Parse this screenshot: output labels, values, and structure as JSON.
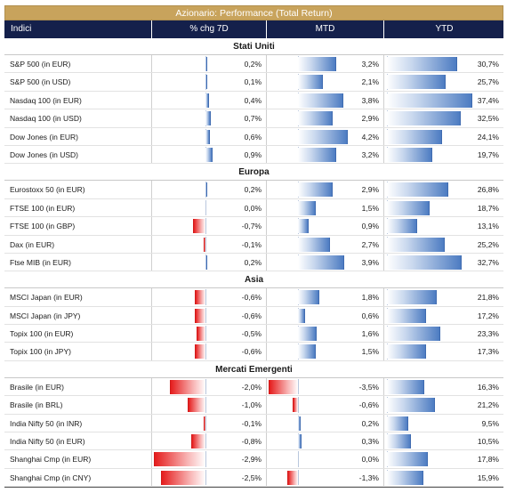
{
  "title": "Azionario: Performance (Total Return)",
  "colors": {
    "title_bg": "#c8a35c",
    "header_bg": "#14204b",
    "positive_bar": "#4d7cc2",
    "negative_bar": "#e51d1d"
  },
  "header": {
    "label": "Indici",
    "col1": "% chg 7D",
    "col2": "MTD",
    "col3": "YTD"
  },
  "chart_data": {
    "type": "table",
    "title": "Azionario: Performance (Total Return)",
    "columns": [
      "Indici",
      "% chg 7D",
      "MTD",
      "YTD"
    ],
    "groups": [
      {
        "name": "Stati Uniti",
        "rows": [
          {
            "label": "S&P 500 (in EUR)",
            "values": [
              0.2,
              3.2,
              30.7
            ],
            "display": [
              "0,2%",
              "3,2%",
              "30,7%"
            ]
          },
          {
            "label": "S&P 500 (in USD)",
            "values": [
              0.1,
              2.1,
              25.7
            ],
            "display": [
              "0,1%",
              "2,1%",
              "25,7%"
            ]
          },
          {
            "label": "Nasdaq 100 (in EUR)",
            "values": [
              0.4,
              3.8,
              37.4
            ],
            "display": [
              "0,4%",
              "3,8%",
              "37,4%"
            ]
          },
          {
            "label": "Nasdaq 100 (in USD)",
            "values": [
              0.7,
              2.9,
              32.5
            ],
            "display": [
              "0,7%",
              "2,9%",
              "32,5%"
            ]
          },
          {
            "label": "Dow Jones (in EUR)",
            "values": [
              0.6,
              4.2,
              24.1
            ],
            "display": [
              "0,6%",
              "4,2%",
              "24,1%"
            ]
          },
          {
            "label": "Dow Jones (in USD)",
            "values": [
              0.9,
              3.2,
              19.7
            ],
            "display": [
              "0,9%",
              "3,2%",
              "19,7%"
            ]
          }
        ]
      },
      {
        "name": "Europa",
        "rows": [
          {
            "label": "Eurostoxx 50 (in EUR)",
            "values": [
              0.2,
              2.9,
              26.8
            ],
            "display": [
              "0,2%",
              "2,9%",
              "26,8%"
            ]
          },
          {
            "label": "FTSE 100 (in EUR)",
            "values": [
              0.0,
              1.5,
              18.7
            ],
            "display": [
              "0,0%",
              "1,5%",
              "18,7%"
            ]
          },
          {
            "label": "FTSE 100 (in GBP)",
            "values": [
              -0.7,
              0.9,
              13.1
            ],
            "display": [
              "-0,7%",
              "0,9%",
              "13,1%"
            ]
          },
          {
            "label": "Dax (in EUR)",
            "values": [
              -0.1,
              2.7,
              25.2
            ],
            "display": [
              "-0,1%",
              "2,7%",
              "25,2%"
            ]
          },
          {
            "label": "Ftse MIB (in EUR)",
            "values": [
              0.2,
              3.9,
              32.7
            ],
            "display": [
              "0,2%",
              "3,9%",
              "32,7%"
            ]
          }
        ]
      },
      {
        "name": "Asia",
        "rows": [
          {
            "label": "MSCI Japan (in EUR)",
            "values": [
              -0.6,
              1.8,
              21.8
            ],
            "display": [
              "-0,6%",
              "1,8%",
              "21,8%"
            ]
          },
          {
            "label": "MSCI Japan (in JPY)",
            "values": [
              -0.6,
              0.6,
              17.2
            ],
            "display": [
              "-0,6%",
              "0,6%",
              "17,2%"
            ]
          },
          {
            "label": "Topix 100 (in EUR)",
            "values": [
              -0.5,
              1.6,
              23.3
            ],
            "display": [
              "-0,5%",
              "1,6%",
              "23,3%"
            ]
          },
          {
            "label": "Topix 100 (in JPY)",
            "values": [
              -0.6,
              1.5,
              17.3
            ],
            "display": [
              "-0,6%",
              "1,5%",
              "17,3%"
            ]
          }
        ]
      },
      {
        "name": "Mercati Emergenti",
        "rows": [
          {
            "label": "Brasile (in EUR)",
            "values": [
              -2.0,
              -3.5,
              16.3
            ],
            "display": [
              "-2,0%",
              "-3,5%",
              "16,3%"
            ]
          },
          {
            "label": "Brasile (in BRL)",
            "values": [
              -1.0,
              -0.6,
              21.2
            ],
            "display": [
              "-1,0%",
              "-0,6%",
              "21,2%"
            ]
          },
          {
            "label": "India Nifty 50 (in INR)",
            "values": [
              -0.1,
              0.2,
              9.5
            ],
            "display": [
              "-0,1%",
              "0,2%",
              "9,5%"
            ]
          },
          {
            "label": "India Nifty 50 (in EUR)",
            "values": [
              -0.8,
              0.3,
              10.5
            ],
            "display": [
              "-0,8%",
              "0,3%",
              "10,5%"
            ]
          },
          {
            "label": "Shanghai Cmp (in EUR)",
            "values": [
              -2.9,
              0.0,
              17.8
            ],
            "display": [
              "-2,9%",
              "0,0%",
              "17,8%"
            ]
          },
          {
            "label": "Shanghai Cmp (in CNY)",
            "values": [
              -2.5,
              -1.3,
              15.9
            ],
            "display": [
              "-2,5%",
              "-1,3%",
              "15,9%"
            ]
          }
        ]
      }
    ]
  }
}
